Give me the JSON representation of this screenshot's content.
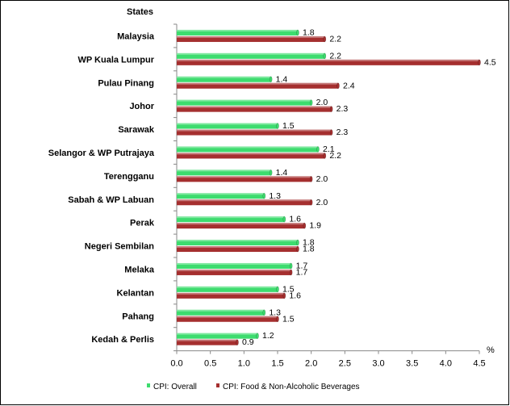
{
  "chart_data": {
    "type": "bar",
    "orientation": "horizontal",
    "yaxis_title": "States",
    "xaxis_unit": "%",
    "categories": [
      "Malaysia",
      "WP Kuala Lumpur",
      "Pulau Pinang",
      "Johor",
      "Sarawak",
      "Selangor & WP Putrajaya",
      "Terengganu",
      "Sabah & WP Labuan",
      "Perak",
      "Negeri Sembilan",
      "Melaka",
      "Kelantan",
      "Pahang",
      "Kedah & Perlis"
    ],
    "series": [
      {
        "name": "CPI: Overall",
        "color": "#3ddc6e",
        "values": [
          1.8,
          2.2,
          1.4,
          2.0,
          1.5,
          2.1,
          1.4,
          1.3,
          1.6,
          1.8,
          1.7,
          1.5,
          1.3,
          1.2
        ],
        "labels": [
          "1.8",
          "2.2",
          "1.4",
          "2.0",
          "1.5",
          "2.1",
          "1.4",
          "1.3",
          "1.6",
          "1.8",
          "1.7",
          "1.5",
          "1.3",
          "1.2"
        ]
      },
      {
        "name": "CPI: Food & Non-Alcoholic Beverages",
        "color": "#a52f2f",
        "values": [
          2.2,
          4.5,
          2.4,
          2.3,
          2.3,
          2.2,
          2.0,
          2.0,
          1.9,
          1.8,
          1.7,
          1.6,
          1.5,
          0.9
        ],
        "labels": [
          "2.2",
          "4.5",
          "2.4",
          "2.3",
          "2.3",
          "2.2",
          "2.0",
          "2.0",
          "1.9",
          "1.8",
          "1.7",
          "1.6",
          "1.5",
          "0.9"
        ]
      }
    ],
    "xlim": [
      0,
      4.5
    ],
    "xticks": [
      "0.0",
      "0.5",
      "1.0",
      "1.5",
      "2.0",
      "2.5",
      "3.0",
      "3.5",
      "4.0",
      "4.5"
    ],
    "grid": false,
    "legend_position": "bottom"
  }
}
